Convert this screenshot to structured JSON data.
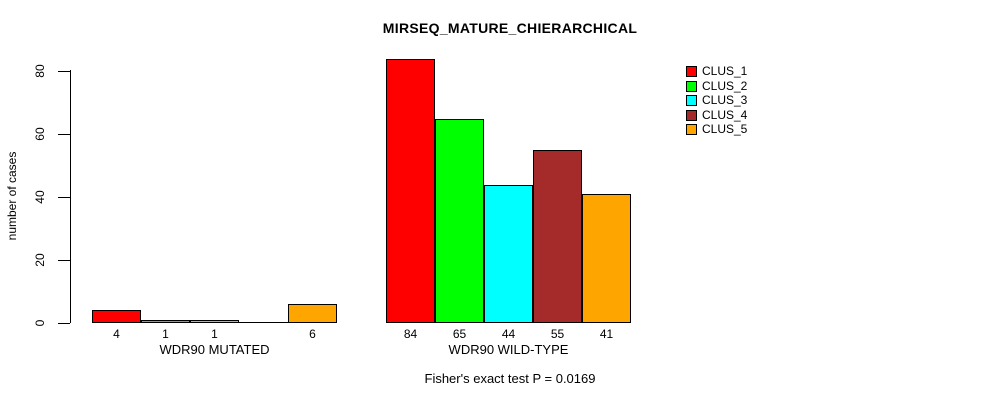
{
  "chart_data": {
    "type": "bar",
    "title": "MIRSEQ_MATURE_CHIERARCHICAL",
    "ylabel": "number of cases",
    "ylim": [
      0,
      80
    ],
    "yticks": [
      0,
      20,
      40,
      60,
      80
    ],
    "grid": false,
    "legend_position": "top-right",
    "footnote": "Fisher's exact test P = 0.0169",
    "series": [
      {
        "name": "CLUS_1",
        "color": "#FF0000"
      },
      {
        "name": "CLUS_2",
        "color": "#00FF00"
      },
      {
        "name": "CLUS_3",
        "color": "#00FFFF"
      },
      {
        "name": "CLUS_4",
        "color": "#A52A2A"
      },
      {
        "name": "CLUS_5",
        "color": "#FFA500"
      }
    ],
    "groups": [
      {
        "label": "WDR90 MUTATED",
        "values": [
          4,
          1,
          1,
          0,
          6
        ],
        "shown_value_labels": [
          "4",
          "1",
          "1",
          "",
          "6"
        ]
      },
      {
        "label": "WDR90 WILD-TYPE",
        "values": [
          84,
          65,
          44,
          55,
          41
        ],
        "shown_value_labels": [
          "84",
          "65",
          "44",
          "55",
          "41"
        ]
      }
    ]
  }
}
